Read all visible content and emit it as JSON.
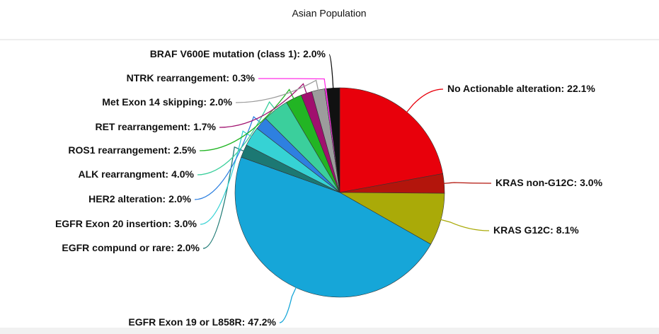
{
  "chart_data": {
    "type": "pie",
    "title": "Asian Population",
    "categories": [
      "No Actionable alteration:",
      "KRAS non-G12C:",
      "KRAS G12C:",
      "EGFR Exon 19 or L858R:",
      "EGFR compund or rare:",
      "EGFR Exon 20 insertion:",
      "HER2 alteration:",
      "ALK rearrangment:",
      "ROS1 rearrangement:",
      "RET rearrangement:",
      "Met Exon 14 skipping:",
      "NTRK rearrangement:",
      "BRAF V600E mutation (class 1):"
    ],
    "values": [
      22.1,
      3.0,
      8.1,
      47.2,
      2.0,
      3.0,
      2.0,
      4.0,
      2.5,
      1.7,
      2.0,
      0.3,
      2.0
    ],
    "value_labels": [
      "22.1%",
      "3.0%",
      "8.1%",
      "47.2%",
      "2.0%",
      "3.0%",
      "2.0%",
      "4.0%",
      "2.5%",
      "1.7%",
      "2.0%",
      "0.3%",
      "2.0%"
    ],
    "colors": [
      "#e8000b",
      "#b3150c",
      "#aaaa08",
      "#16a6d8",
      "#1c7873",
      "#36d2d4",
      "#2e80e0",
      "#3bcf9c",
      "#22b524",
      "#a0106e",
      "#9c9c9c",
      "#ff2ee6",
      "#111111"
    ]
  }
}
